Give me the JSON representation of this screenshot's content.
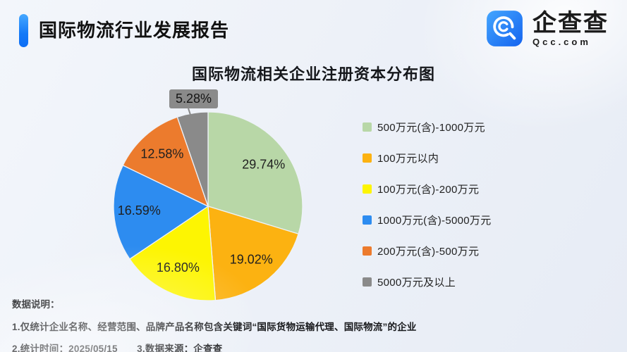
{
  "header": {
    "title": "国际物流行业发展报告",
    "accent_color": "#1479f7",
    "logo": {
      "name": "企查查",
      "domain": "Qcc.com",
      "icon": "qcc-magnifier-icon",
      "icon_color_top": "#3f9efd",
      "icon_color_bottom": "#1465f0"
    }
  },
  "chart_data": {
    "type": "pie",
    "title": "国际物流相关企业注册资本分布图",
    "label_format": "percent",
    "legend_position": "right",
    "start_angle_deg": 0,
    "direction": "clockwise",
    "slices": [
      {
        "label": "500万元(含)-1000万元",
        "value": 29.74,
        "color": "#b8d7a7"
      },
      {
        "label": "100万元以内",
        "value": 19.02,
        "color": "#fcb211"
      },
      {
        "label": "100万元(含)-200万元",
        "value": 16.8,
        "color": "#fdf502"
      },
      {
        "label": "1000万元(含)-5000万元",
        "value": 16.59,
        "color": "#2d8cf0"
      },
      {
        "label": "200万元(含)-500万元",
        "value": 12.58,
        "color": "#ec7b2d"
      },
      {
        "label": "5000万元及以上",
        "value": 5.28,
        "color": "#8a8a8a",
        "callout": true
      }
    ]
  },
  "footer": {
    "heading": "数据说明：",
    "notes": [
      "1.仅统计企业名称、经营范围、品牌产品名称包含关键词“国际货物运输代理、国际物流”的企业",
      "2.统计时间：2025/05/15　　3.数据来源：企查查"
    ]
  }
}
